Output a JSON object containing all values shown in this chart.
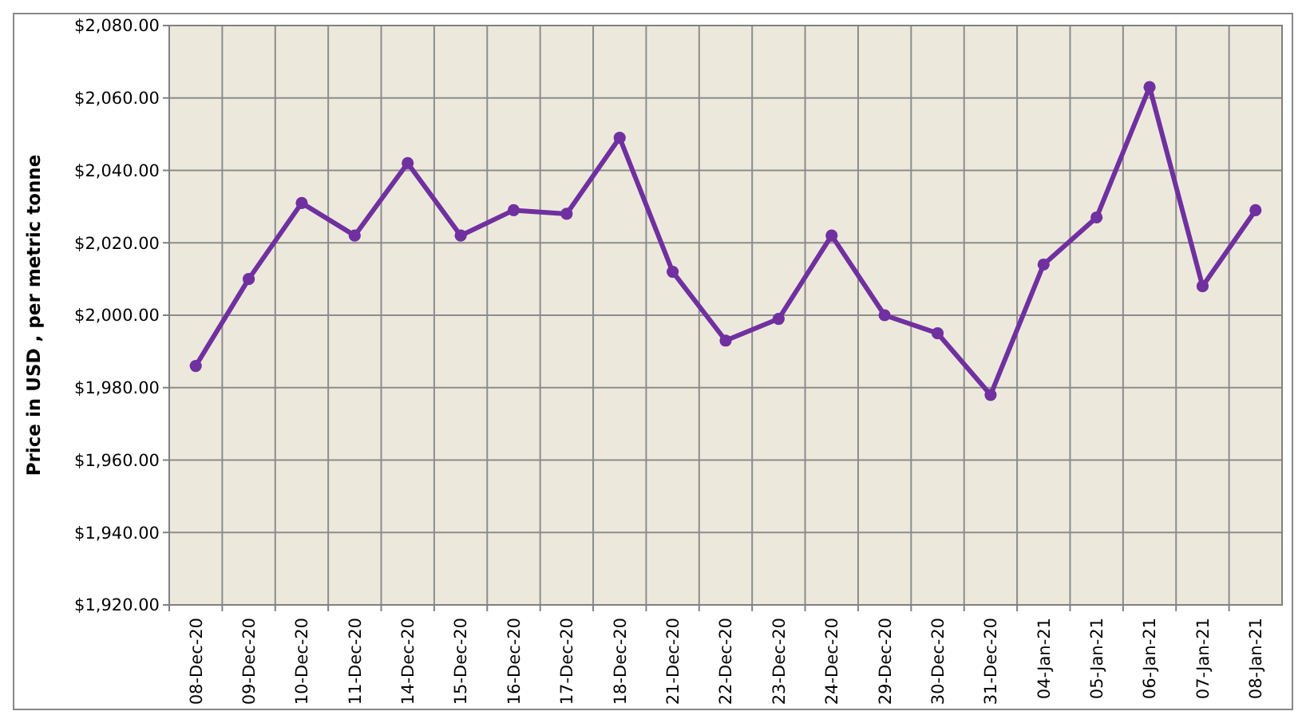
{
  "chart_data": {
    "type": "line",
    "ylabel": "Price in USD , per metric tonne",
    "categories": [
      "08-Dec-20",
      "09-Dec-20",
      "10-Dec-20",
      "11-Dec-20",
      "14-Dec-20",
      "15-Dec-20",
      "16-Dec-20",
      "17-Dec-20",
      "18-Dec-20",
      "21-Dec-20",
      "22-Dec-20",
      "23-Dec-20",
      "24-Dec-20",
      "29-Dec-20",
      "30-Dec-20",
      "31-Dec-20",
      "04-Jan-21",
      "05-Jan-21",
      "06-Jan-21",
      "07-Jan-21",
      "08-Jan-21"
    ],
    "series": [
      {
        "color": "#7030a0",
        "values": [
          1986,
          2010,
          2031,
          2022,
          2042,
          2022,
          2029,
          2028,
          2049,
          2012,
          1993,
          1999,
          2022,
          2000,
          1995,
          1978,
          2014,
          2027,
          2063,
          2008,
          2029
        ]
      }
    ],
    "ylim": [
      1920,
      2080
    ],
    "yticks": [
      {
        "value": 1920,
        "label": "$1,920.00"
      },
      {
        "value": 1940,
        "label": "$1,940.00"
      },
      {
        "value": 1960,
        "label": "$1,960.00"
      },
      {
        "value": 1980,
        "label": "$1,980.00"
      },
      {
        "value": 2000,
        "label": "$2,000.00"
      },
      {
        "value": 2020,
        "label": "$2,020.00"
      },
      {
        "value": 2040,
        "label": "$2,040.00"
      },
      {
        "value": 2060,
        "label": "$2,060.00"
      },
      {
        "value": 2080,
        "label": "$2,080.00"
      }
    ],
    "grid": true,
    "marker": "circle",
    "line_style": "solid"
  }
}
